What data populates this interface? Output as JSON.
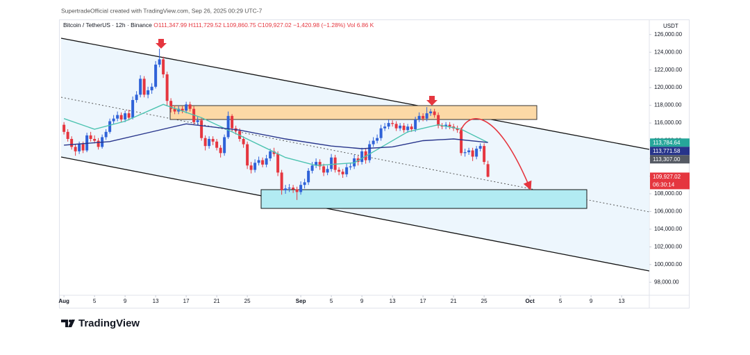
{
  "header": {
    "created": "SupertradeOfficial created with TradingView.com, Sep 26, 2025 00:29 UTC-7"
  },
  "legend": {
    "symbol": "Bitcoin / TetherUS · 12h · Binance",
    "open": "O111,347.99",
    "high": "H111,729.52",
    "low": "L109,860.75",
    "close": "C109,927.02",
    "change": "−1,420.98 (−1.28%)",
    "volume": "Vol 6.86 K"
  },
  "footer": {
    "brand": "TradingView"
  },
  "chart_data": {
    "type": "candlestick",
    "currency": "USDT",
    "up_color": "#2f62d8",
    "down_color": "#e5363f",
    "xlim": [
      "2025-07-31T15:00",
      "2025-10-16T15:00"
    ],
    "ylim": [
      97000,
      127000
    ],
    "yticks": [
      {
        "value": 98000,
        "label": "98,000.00"
      },
      {
        "value": 100000,
        "label": "100,000.00"
      },
      {
        "value": 102000,
        "label": "102,000.00"
      },
      {
        "value": 104000,
        "label": "104,000.00"
      },
      {
        "value": 106000,
        "label": "106,000.00"
      },
      {
        "value": 108000,
        "label": "108,000.00"
      },
      {
        "value": 110000,
        "label": "110,000.00"
      },
      {
        "value": 112000,
        "label": "112,000.00"
      },
      {
        "value": 114000,
        "label": "114,000.00"
      },
      {
        "value": 116000,
        "label": "116,000.00"
      },
      {
        "value": 118000,
        "label": "118,000.00"
      },
      {
        "value": 120000,
        "label": "120,000.00"
      },
      {
        "value": 122000,
        "label": "122,000.00"
      },
      {
        "value": 124000,
        "label": "124,000.00"
      },
      {
        "value": 126000,
        "label": "126,000.00"
      }
    ],
    "xticks": [
      {
        "value": "2025-08-01T00:00",
        "label": "Aug"
      },
      {
        "value": "2025-08-05T00:00",
        "label": "5"
      },
      {
        "value": "2025-08-09T00:00",
        "label": "9"
      },
      {
        "value": "2025-08-13T00:00",
        "label": "13"
      },
      {
        "value": "2025-08-17T00:00",
        "label": "17"
      },
      {
        "value": "2025-08-21T00:00",
        "label": "21"
      },
      {
        "value": "2025-08-25T00:00",
        "label": "25"
      },
      {
        "value": "2025-09-01T00:00",
        "label": "Sep"
      },
      {
        "value": "2025-09-05T00:00",
        "label": "5"
      },
      {
        "value": "2025-09-09T00:00",
        "label": "9"
      },
      {
        "value": "2025-09-13T00:00",
        "label": "13"
      },
      {
        "value": "2025-09-17T00:00",
        "label": "17"
      },
      {
        "value": "2025-09-21T00:00",
        "label": "21"
      },
      {
        "value": "2025-09-25T00:00",
        "label": "25"
      },
      {
        "value": "2025-10-01T00:00",
        "label": "Oct"
      },
      {
        "value": "2025-10-05T00:00",
        "label": "5"
      },
      {
        "value": "2025-10-09T00:00",
        "label": "9"
      },
      {
        "value": "2025-10-13T00:00",
        "label": "13"
      }
    ],
    "x": [
      "2025-08-01T00:00",
      "2025-08-01T12:00",
      "2025-08-02T00:00",
      "2025-08-02T12:00",
      "2025-08-03T00:00",
      "2025-08-03T12:00",
      "2025-08-04T00:00",
      "2025-08-04T12:00",
      "2025-08-05T00:00",
      "2025-08-05T12:00",
      "2025-08-06T00:00",
      "2025-08-06T12:00",
      "2025-08-07T00:00",
      "2025-08-07T12:00",
      "2025-08-08T00:00",
      "2025-08-08T12:00",
      "2025-08-09T00:00",
      "2025-08-09T12:00",
      "2025-08-10T00:00",
      "2025-08-10T12:00",
      "2025-08-11T00:00",
      "2025-08-11T12:00",
      "2025-08-12T00:00",
      "2025-08-12T12:00",
      "2025-08-13T00:00",
      "2025-08-13T12:00",
      "2025-08-14T00:00",
      "2025-08-14T12:00",
      "2025-08-15T00:00",
      "2025-08-15T12:00",
      "2025-08-16T00:00",
      "2025-08-16T12:00",
      "2025-08-17T00:00",
      "2025-08-17T12:00",
      "2025-08-18T00:00",
      "2025-08-18T12:00",
      "2025-08-19T00:00",
      "2025-08-19T12:00",
      "2025-08-20T00:00",
      "2025-08-20T12:00",
      "2025-08-21T00:00",
      "2025-08-21T12:00",
      "2025-08-22T00:00",
      "2025-08-22T12:00",
      "2025-08-23T00:00",
      "2025-08-23T12:00",
      "2025-08-24T00:00",
      "2025-08-24T12:00",
      "2025-08-25T00:00",
      "2025-08-25T12:00",
      "2025-08-26T00:00",
      "2025-08-26T12:00",
      "2025-08-27T00:00",
      "2025-08-27T12:00",
      "2025-08-28T00:00",
      "2025-08-28T12:00",
      "2025-08-29T00:00",
      "2025-08-29T12:00",
      "2025-08-30T00:00",
      "2025-08-30T12:00",
      "2025-08-31T00:00",
      "2025-08-31T12:00",
      "2025-09-01T00:00",
      "2025-09-01T12:00",
      "2025-09-02T00:00",
      "2025-09-02T12:00",
      "2025-09-03T00:00",
      "2025-09-03T12:00",
      "2025-09-04T00:00",
      "2025-09-04T12:00",
      "2025-09-05T00:00",
      "2025-09-05T12:00",
      "2025-09-06T00:00",
      "2025-09-06T12:00",
      "2025-09-07T00:00",
      "2025-09-07T12:00",
      "2025-09-08T00:00",
      "2025-09-08T12:00",
      "2025-09-09T00:00",
      "2025-09-09T12:00",
      "2025-09-10T00:00",
      "2025-09-10T12:00",
      "2025-09-11T00:00",
      "2025-09-11T12:00",
      "2025-09-12T00:00",
      "2025-09-12T12:00",
      "2025-09-13T00:00",
      "2025-09-13T12:00",
      "2025-09-14T00:00",
      "2025-09-14T12:00",
      "2025-09-15T00:00",
      "2025-09-15T12:00",
      "2025-09-16T00:00",
      "2025-09-16T12:00",
      "2025-09-17T00:00",
      "2025-09-17T12:00",
      "2025-09-18T00:00",
      "2025-09-18T12:00",
      "2025-09-19T00:00",
      "2025-09-19T12:00",
      "2025-09-20T00:00",
      "2025-09-20T12:00",
      "2025-09-21T00:00",
      "2025-09-21T12:00",
      "2025-09-22T00:00",
      "2025-09-22T12:00",
      "2025-09-23T00:00",
      "2025-09-23T12:00",
      "2025-09-24T00:00",
      "2025-09-24T12:00",
      "2025-09-25T00:00",
      "2025-09-25T12:00"
    ],
    "open": [
      115800,
      115000,
      114200,
      113300,
      112800,
      113600,
      112900,
      114600,
      114200,
      114000,
      113300,
      114400,
      115000,
      116200,
      116500,
      116900,
      116400,
      117100,
      116600,
      118600,
      119200,
      121000,
      119200,
      119700,
      120100,
      122600,
      123200,
      121500,
      118500,
      117600,
      117300,
      117600,
      117400,
      118100,
      117600,
      116100,
      116300,
      114300,
      113400,
      114200,
      113900,
      113200,
      112600,
      114400,
      116800,
      115400,
      115100,
      114200,
      113600,
      111200,
      110700,
      111500,
      111800,
      111300,
      112000,
      112800,
      112500,
      110400,
      108400,
      108600,
      108700,
      108500,
      108200,
      109000,
      109300,
      110600,
      111200,
      111600,
      111100,
      110400,
      110800,
      112100,
      110700,
      110500,
      110200,
      111000,
      111100,
      112000,
      111600,
      112800,
      111800,
      113600,
      114000,
      114300,
      115400,
      115600,
      116000,
      115900,
      115400,
      115700,
      115200,
      115600,
      115300,
      116400,
      116800,
      116500,
      117100,
      117300,
      116900,
      115700,
      115600,
      115800,
      115600,
      115400,
      115200,
      112600,
      112700,
      112900,
      112200,
      113100,
      113400,
      111347.99
    ],
    "high": [
      116100,
      115300,
      114500,
      113600,
      113900,
      113900,
      114900,
      115000,
      114600,
      114300,
      114700,
      115300,
      116500,
      116900,
      117300,
      117200,
      117400,
      117500,
      119000,
      119600,
      121400,
      121300,
      120100,
      120500,
      123000,
      124400,
      123500,
      121800,
      118800,
      118000,
      117900,
      117900,
      118400,
      118400,
      117900,
      116700,
      116600,
      114600,
      114500,
      114500,
      114200,
      113500,
      114700,
      117300,
      117000,
      115700,
      115400,
      114500,
      113900,
      111600,
      111900,
      112200,
      112100,
      112400,
      113100,
      113200,
      112800,
      110700,
      109000,
      109100,
      109000,
      108800,
      109400,
      109700,
      110900,
      111600,
      112000,
      111900,
      111400,
      111200,
      112500,
      112400,
      111000,
      110800,
      111400,
      111500,
      112400,
      112300,
      113200,
      113100,
      114000,
      114400,
      114700,
      115800,
      116000,
      116400,
      116300,
      116200,
      116000,
      116000,
      115900,
      115900,
      116700,
      117200,
      117100,
      117800,
      117600,
      117600,
      117200,
      116000,
      116100,
      116100,
      115900,
      115700,
      115500,
      113100,
      113200,
      113200,
      113400,
      113700,
      113700,
      111729.52
    ],
    "low": [
      114700,
      113900,
      113000,
      112300,
      112500,
      112600,
      112700,
      113900,
      113700,
      113000,
      113100,
      114100,
      114800,
      115900,
      116200,
      116100,
      116100,
      116300,
      116400,
      118300,
      118900,
      118900,
      118800,
      119300,
      119900,
      122300,
      121100,
      117900,
      117200,
      117000,
      117000,
      117100,
      117100,
      117300,
      115800,
      115800,
      114000,
      112900,
      113100,
      113500,
      112900,
      112100,
      112300,
      114200,
      115100,
      114700,
      113900,
      113200,
      110800,
      110300,
      110400,
      111200,
      111000,
      111000,
      111700,
      112200,
      110000,
      107900,
      108000,
      108200,
      108100,
      107300,
      107900,
      108600,
      109000,
      110300,
      110900,
      110700,
      110000,
      110100,
      110500,
      110400,
      110100,
      109800,
      109900,
      110700,
      110800,
      111200,
      111300,
      111400,
      111500,
      113300,
      113700,
      114000,
      115100,
      115300,
      115600,
      115100,
      115100,
      114900,
      114900,
      115000,
      115000,
      116100,
      116200,
      116200,
      116800,
      116600,
      115400,
      115300,
      115300,
      115300,
      115100,
      114900,
      112300,
      112200,
      112400,
      111700,
      111900,
      112800,
      111300,
      109860.75
    ],
    "close": [
      115000,
      114200,
      113300,
      112800,
      113600,
      112900,
      114600,
      114200,
      114000,
      113300,
      114400,
      115000,
      116200,
      116500,
      116900,
      116400,
      117100,
      116600,
      118600,
      119200,
      121000,
      119200,
      119700,
      120100,
      122600,
      123200,
      121500,
      118500,
      117600,
      117300,
      117600,
      117400,
      118100,
      117600,
      116100,
      116300,
      114300,
      113400,
      114200,
      113900,
      113200,
      112600,
      114400,
      116800,
      115400,
      115100,
      114200,
      113600,
      111200,
      110700,
      111500,
      111800,
      111300,
      112000,
      112800,
      112500,
      110400,
      108400,
      108600,
      108700,
      108500,
      108200,
      109000,
      109300,
      110600,
      111200,
      111600,
      111100,
      110400,
      110800,
      112100,
      110700,
      110500,
      110200,
      111000,
      111100,
      112000,
      111600,
      112800,
      111800,
      113600,
      114000,
      114300,
      115400,
      115600,
      116000,
      115900,
      115400,
      115700,
      115200,
      115600,
      115300,
      116400,
      116800,
      116500,
      117100,
      117300,
      116900,
      115700,
      115600,
      115800,
      115600,
      115400,
      115200,
      112600,
      112700,
      112900,
      112200,
      113100,
      113400,
      111600,
      109927.02
    ],
    "overlays": [
      {
        "color": "#4cc3b0",
        "x": [
          "2025-08-01T00:00",
          "2025-08-05T00:00",
          "2025-08-09T00:00",
          "2025-08-14T00:00",
          "2025-08-19T00:00",
          "2025-08-24T00:00",
          "2025-08-30T00:00",
          "2025-09-03T00:00",
          "2025-09-08T00:00",
          "2025-09-11T00:00",
          "2025-09-15T00:00",
          "2025-09-19T00:00",
          "2025-09-22T00:00",
          "2025-09-25T12:00"
        ],
        "values": [
          116500,
          115300,
          116200,
          118100,
          116600,
          114600,
          112100,
          111200,
          111500,
          113000,
          115000,
          115800,
          115300,
          113800
        ]
      },
      {
        "color": "#27348b",
        "x": [
          "2025-08-01T00:00",
          "2025-08-07T00:00",
          "2025-08-13T00:00",
          "2025-08-17T00:00",
          "2025-08-24T00:00",
          "2025-08-30T00:00",
          "2025-09-05T00:00",
          "2025-09-09T00:00",
          "2025-09-13T00:00",
          "2025-09-17T00:00",
          "2025-09-21T00:00",
          "2025-09-25T12:00"
        ],
        "values": [
          113500,
          113900,
          115100,
          115900,
          115200,
          114200,
          113400,
          113100,
          113300,
          114000,
          114200,
          113800
        ]
      }
    ],
    "price_tags": [
      {
        "value": 113784.64,
        "label": "113,784.64",
        "color": "#26a69a"
      },
      {
        "value": 113771.58,
        "label": "113,771.58",
        "color": "#27348b"
      },
      {
        "value": 113307,
        "label": "113,307.00",
        "color": "#555a64"
      },
      {
        "value": 109927.02,
        "label": "109,927.02",
        "color": "#e5363f",
        "countdown": "06:30:14"
      }
    ]
  }
}
